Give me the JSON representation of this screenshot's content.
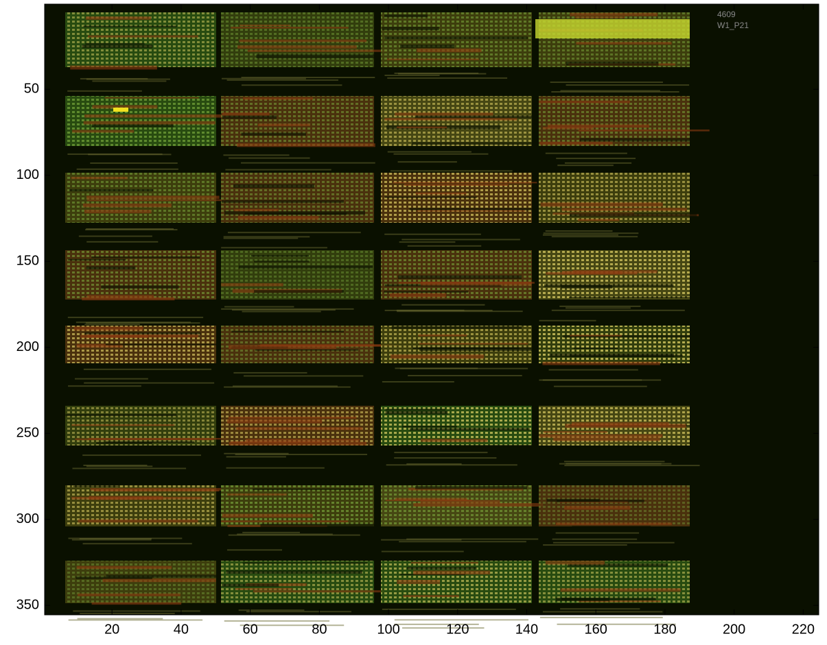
{
  "chart_data": {
    "type": "image",
    "annotations": [
      "4609",
      "W1_P21"
    ],
    "xlim": [
      0.5,
      224.5
    ],
    "xticks": [
      20,
      40,
      60,
      80,
      100,
      120,
      140,
      160,
      180,
      200,
      220
    ],
    "ylim": [
      0.5,
      355.5
    ],
    "yticks": [
      50,
      100,
      150,
      200,
      250,
      300,
      350
    ],
    "y_reversed": true
  }
}
